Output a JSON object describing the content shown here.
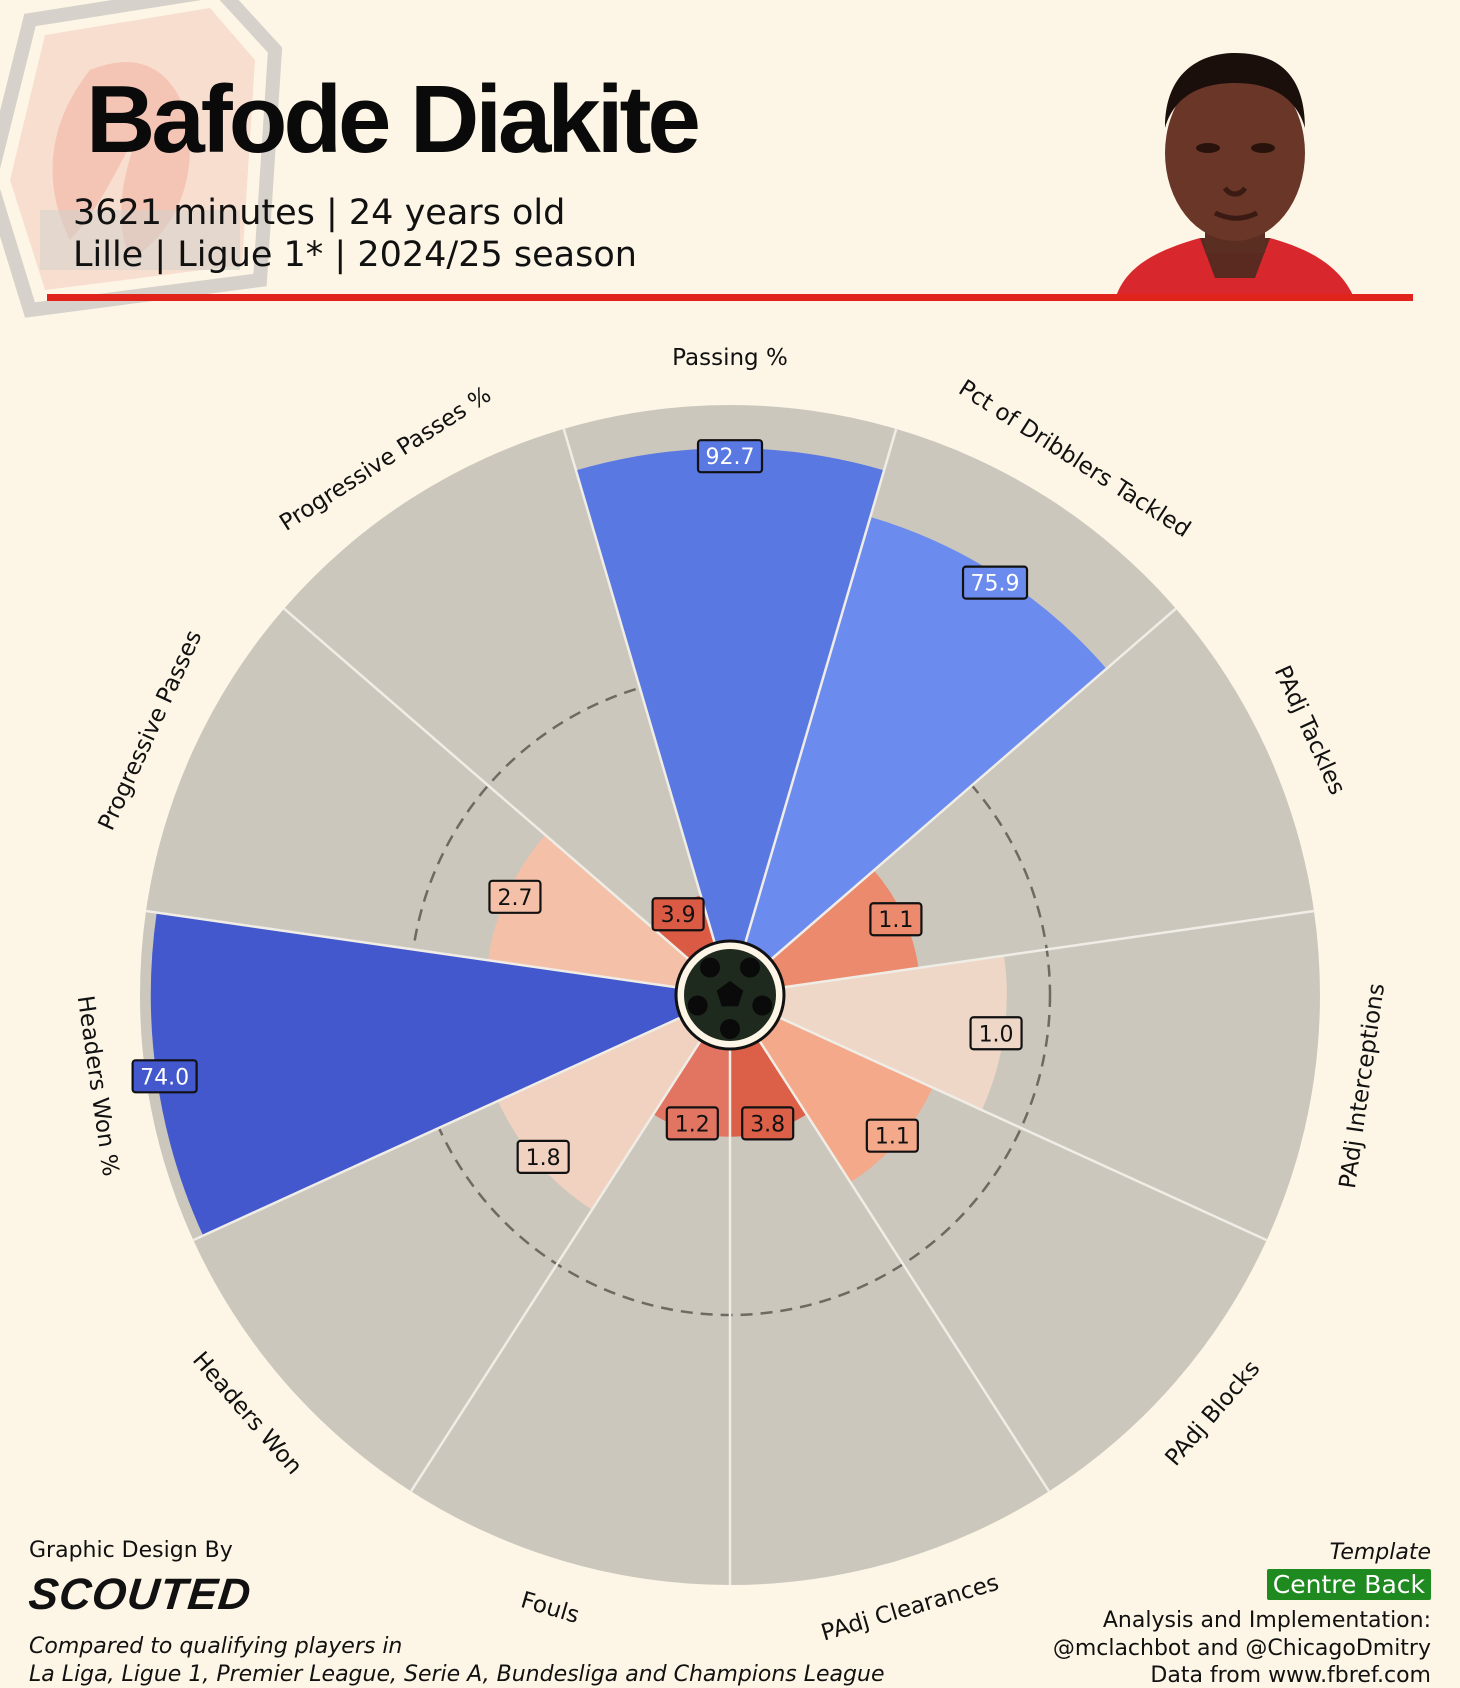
{
  "header": {
    "player_name": "Bafode Diakite",
    "line1": "3621 minutes | 24 years old",
    "line2": "Lille | Ligue 1* | 2024/25 season",
    "club_logo_icon": "lille-club-crest",
    "photo_icon": "player-headshot",
    "accent_color": "#e0231b"
  },
  "footer": {
    "design_by": "Graphic Design By",
    "brand": "SCOUTED",
    "compared": "Compared to qualifying players in",
    "leagues": "La Liga, Ligue 1, Premier League, Serie A, Bundesliga and Champions League",
    "template_label": "Template",
    "template_name": "Centre Back",
    "credit1": "Analysis and Implementation:",
    "credit2": "@mclachbot and @ChicagoDmitry",
    "credit3": "Data from www.fbref.com"
  },
  "chart_data": {
    "type": "pizza",
    "center_icon": "football-icon",
    "reference_ring_percentile": 50,
    "range": [
      0,
      100
    ],
    "slices": [
      {
        "label": "Passing %",
        "value": "92.7",
        "percentile": 92,
        "color": "#5a78e2"
      },
      {
        "label": "Pct of Dribblers Tackled",
        "value": "75.9",
        "percentile": 83,
        "color": "#6b8bee"
      },
      {
        "label": "PAdj Tackles",
        "value": "1.1",
        "percentile": 26,
        "color": "#ec8a6e"
      },
      {
        "label": "PAdj Interceptions",
        "value": "1.0",
        "percentile": 42,
        "color": "#efd7c8"
      },
      {
        "label": "PAdj Blocks",
        "value": "1.1",
        "percentile": 32,
        "color": "#f3a98a"
      },
      {
        "label": "PAdj Clearances",
        "value": "3.8",
        "percentile": 17,
        "color": "#dc5f48"
      },
      {
        "label": "Fouls",
        "value": "1.2",
        "percentile": 17,
        "color": "#e27562"
      },
      {
        "label": "Headers Won",
        "value": "1.8",
        "percentile": 38,
        "color": "#f1d1c0"
      },
      {
        "label": "Headers Won %",
        "value": "74.0",
        "percentile": 98,
        "color": "#4358cc"
      },
      {
        "label": "Progressive Passes",
        "value": "2.7",
        "percentile": 36,
        "color": "#f4c1a8"
      },
      {
        "label": "Progressive Passes %",
        "value": "3.9",
        "percentile": 10,
        "color": "#da5a44"
      }
    ]
  }
}
